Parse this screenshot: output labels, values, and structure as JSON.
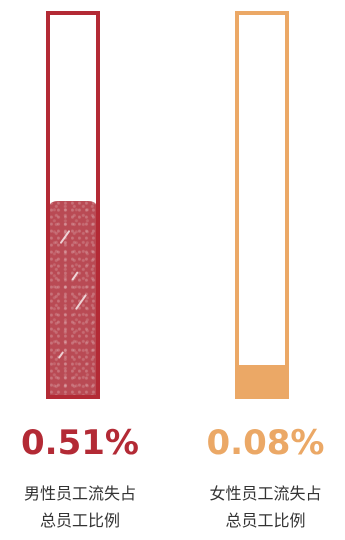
{
  "chart_data": {
    "type": "bar",
    "categories": [
      "男性员工流失占\n总员工比例",
      "女性员工流失占\n总员工比例"
    ],
    "values": [
      0.51,
      0.08
    ],
    "value_labels": [
      "0.51%",
      "0.08%"
    ],
    "ylim": [
      0,
      1
    ],
    "grid": false,
    "colors": [
      "#b32a35",
      "#eba866"
    ]
  }
}
